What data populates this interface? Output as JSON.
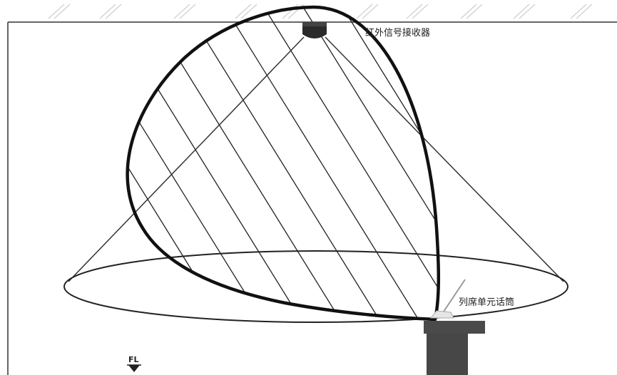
{
  "labels": {
    "receiver": "红外信号接收器",
    "mic_unit": "列席单元话筒",
    "floor_marker": "FL"
  }
}
